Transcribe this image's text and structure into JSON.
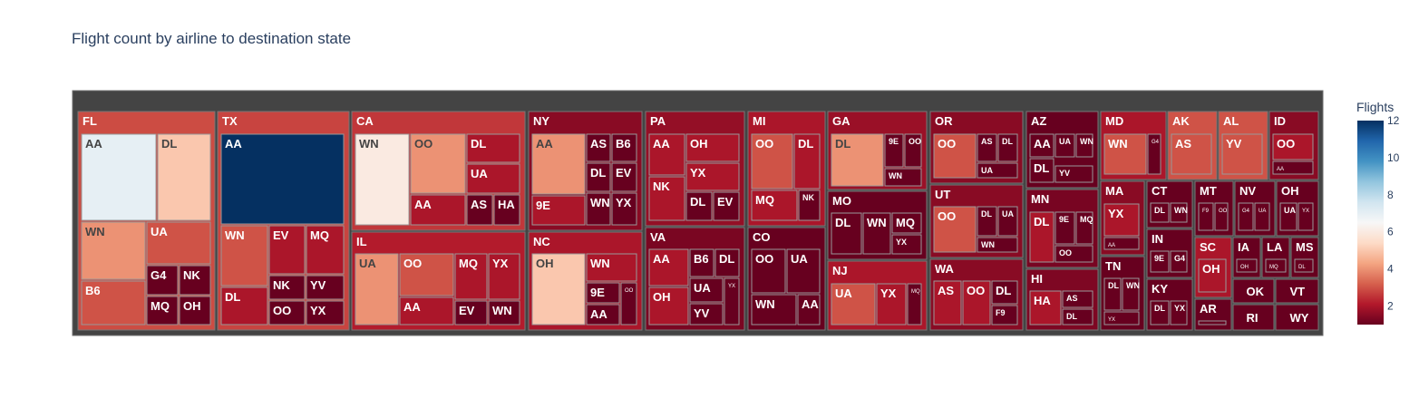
{
  "title": "Flight count by airline to destination state",
  "colorbar": {
    "title": "Flights",
    "ticks": [
      2,
      4,
      6,
      8,
      10,
      12
    ],
    "min": 1,
    "max": 12,
    "colorscale": [
      "#67001f",
      "#b2182b",
      "#d6604d",
      "#f4a582",
      "#fddbc7",
      "#f7f7f7",
      "#d1e5f0",
      "#92c5de",
      "#4393c3",
      "#2166ac",
      "#053061"
    ]
  },
  "chart_data": {
    "type": "treemap",
    "root_color_label": "all states",
    "states": [
      {
        "name": "FL",
        "airlines": [
          {
            "name": "AA",
            "flights": 7
          },
          {
            "name": "DL",
            "flights": 5
          },
          {
            "name": "WN",
            "flights": 4
          },
          {
            "name": "UA",
            "flights": 3
          },
          {
            "name": "B6",
            "flights": 3
          },
          {
            "name": "G4",
            "flights": 1
          },
          {
            "name": "NK",
            "flights": 1
          },
          {
            "name": "MQ",
            "flights": 1
          },
          {
            "name": "OH",
            "flights": 1
          }
        ]
      },
      {
        "name": "TX",
        "airlines": [
          {
            "name": "AA",
            "flights": 12
          },
          {
            "name": "WN",
            "flights": 3
          },
          {
            "name": "EV",
            "flights": 2
          },
          {
            "name": "MQ",
            "flights": 2
          },
          {
            "name": "DL",
            "flights": 2
          },
          {
            "name": "NK",
            "flights": 1
          },
          {
            "name": "YV",
            "flights": 1
          },
          {
            "name": "OO",
            "flights": 1
          },
          {
            "name": "YX",
            "flights": 1
          }
        ]
      },
      {
        "name": "CA",
        "airlines": [
          {
            "name": "WN",
            "flights": 6
          },
          {
            "name": "OO",
            "flights": 4
          },
          {
            "name": "DL",
            "flights": 2
          },
          {
            "name": "UA",
            "flights": 2
          },
          {
            "name": "AA",
            "flights": 2
          },
          {
            "name": "AS",
            "flights": 1
          },
          {
            "name": "HA",
            "flights": 1
          }
        ]
      },
      {
        "name": "IL",
        "airlines": [
          {
            "name": "UA",
            "flights": 4
          },
          {
            "name": "OO",
            "flights": 3
          },
          {
            "name": "MQ",
            "flights": 2
          },
          {
            "name": "YX",
            "flights": 2
          },
          {
            "name": "AA",
            "flights": 2
          },
          {
            "name": "EV",
            "flights": 1
          },
          {
            "name": "WN",
            "flights": 1
          }
        ]
      },
      {
        "name": "NY",
        "airlines": [
          {
            "name": "AA",
            "flights": 4
          },
          {
            "name": "AS",
            "flights": 1
          },
          {
            "name": "B6",
            "flights": 1
          },
          {
            "name": "DL",
            "flights": 1
          },
          {
            "name": "EV",
            "flights": 1
          },
          {
            "name": "9E",
            "flights": 2
          },
          {
            "name": "WN",
            "flights": 1
          },
          {
            "name": "YX",
            "flights": 1
          }
        ]
      },
      {
        "name": "NC",
        "airlines": [
          {
            "name": "OH",
            "flights": 5
          },
          {
            "name": "WN",
            "flights": 2
          },
          {
            "name": "9E",
            "flights": 1
          },
          {
            "name": "AA",
            "flights": 1
          },
          {
            "name": "OO",
            "flights": 1
          }
        ]
      },
      {
        "name": "PA",
        "airlines": [
          {
            "name": "AA",
            "flights": 2
          },
          {
            "name": "OH",
            "flights": 2
          },
          {
            "name": "YX",
            "flights": 2
          },
          {
            "name": "NK",
            "flights": 2
          },
          {
            "name": "DL",
            "flights": 1
          },
          {
            "name": "EV",
            "flights": 1
          }
        ]
      },
      {
        "name": "VA",
        "airlines": [
          {
            "name": "AA",
            "flights": 2
          },
          {
            "name": "B6",
            "flights": 1
          },
          {
            "name": "DL",
            "flights": 1
          },
          {
            "name": "OH",
            "flights": 2
          },
          {
            "name": "UA",
            "flights": 1
          },
          {
            "name": "YV",
            "flights": 1
          },
          {
            "name": "YX",
            "flights": 1
          }
        ]
      },
      {
        "name": "MI",
        "airlines": [
          {
            "name": "OO",
            "flights": 3
          },
          {
            "name": "DL",
            "flights": 2
          },
          {
            "name": "MQ",
            "flights": 2
          },
          {
            "name": "NK",
            "flights": 1
          }
        ]
      },
      {
        "name": "CO",
        "airlines": [
          {
            "name": "OO",
            "flights": 1
          },
          {
            "name": "UA",
            "flights": 1
          },
          {
            "name": "WN",
            "flights": 1
          },
          {
            "name": "AA",
            "flights": 1
          }
        ]
      },
      {
        "name": "GA",
        "airlines": [
          {
            "name": "DL",
            "flights": 4
          },
          {
            "name": "9E",
            "flights": 1
          },
          {
            "name": "OO",
            "flights": 1
          },
          {
            "name": "WN",
            "flights": 1
          }
        ]
      },
      {
        "name": "MO",
        "airlines": [
          {
            "name": "DL",
            "flights": 1
          },
          {
            "name": "WN",
            "flights": 1
          },
          {
            "name": "MQ",
            "flights": 1
          },
          {
            "name": "YX",
            "flights": 1
          }
        ]
      },
      {
        "name": "NJ",
        "airlines": [
          {
            "name": "UA",
            "flights": 3
          },
          {
            "name": "YX",
            "flights": 2
          },
          {
            "name": "MQ",
            "flights": 1
          }
        ]
      },
      {
        "name": "OR",
        "airlines": [
          {
            "name": "OO",
            "flights": 3
          },
          {
            "name": "AS",
            "flights": 1
          },
          {
            "name": "DL",
            "flights": 1
          },
          {
            "name": "UA",
            "flights": 1
          }
        ]
      },
      {
        "name": "UT",
        "airlines": [
          {
            "name": "OO",
            "flights": 3
          },
          {
            "name": "DL",
            "flights": 1
          },
          {
            "name": "UA",
            "flights": 1
          },
          {
            "name": "WN",
            "flights": 1
          }
        ]
      },
      {
        "name": "WA",
        "airlines": [
          {
            "name": "AS",
            "flights": 2
          },
          {
            "name": "OO",
            "flights": 2
          },
          {
            "name": "DL",
            "flights": 1
          },
          {
            "name": "F9",
            "flights": 1
          }
        ]
      },
      {
        "name": "AZ",
        "airlines": [
          {
            "name": "AA",
            "flights": 1
          },
          {
            "name": "UA",
            "flights": 1
          },
          {
            "name": "WN",
            "flights": 1
          },
          {
            "name": "DL",
            "flights": 1
          },
          {
            "name": "YV",
            "flights": 1
          }
        ]
      },
      {
        "name": "MN",
        "airlines": [
          {
            "name": "DL",
            "flights": 2
          },
          {
            "name": "9E",
            "flights": 1
          },
          {
            "name": "MQ",
            "flights": 1
          },
          {
            "name": "OO",
            "flights": 1
          }
        ]
      },
      {
        "name": "HI",
        "airlines": [
          {
            "name": "HA",
            "flights": 2
          },
          {
            "name": "AS",
            "flights": 1
          },
          {
            "name": "DL",
            "flights": 1
          }
        ]
      },
      {
        "name": "MD",
        "airlines": [
          {
            "name": "WN",
            "flights": 3
          },
          {
            "name": "G4",
            "flights": 1
          }
        ]
      },
      {
        "name": "AK",
        "airlines": [
          {
            "name": "AS",
            "flights": 3
          }
        ]
      },
      {
        "name": "AL",
        "airlines": [
          {
            "name": "YV",
            "flights": 3
          }
        ]
      },
      {
        "name": "ID",
        "airlines": [
          {
            "name": "OO",
            "flights": 2
          },
          {
            "name": "AA",
            "flights": 1
          }
        ]
      },
      {
        "name": "MA",
        "airlines": [
          {
            "name": "YX",
            "flights": 2
          },
          {
            "name": "AA",
            "flights": 1
          }
        ]
      },
      {
        "name": "TN",
        "airlines": [
          {
            "name": "DL",
            "flights": 1
          },
          {
            "name": "WN",
            "flights": 1
          },
          {
            "name": "YX",
            "flights": 1
          }
        ]
      },
      {
        "name": "CT",
        "airlines": [
          {
            "name": "DL",
            "flights": 1
          },
          {
            "name": "WN",
            "flights": 1
          }
        ]
      },
      {
        "name": "IN",
        "airlines": [
          {
            "name": "9E",
            "flights": 1
          },
          {
            "name": "G4",
            "flights": 1
          }
        ]
      },
      {
        "name": "KY",
        "airlines": [
          {
            "name": "DL",
            "flights": 1
          },
          {
            "name": "YX",
            "flights": 1
          }
        ]
      },
      {
        "name": "MT",
        "airlines": [
          {
            "name": "F9",
            "flights": 1
          },
          {
            "name": "OO",
            "flights": 1
          }
        ]
      },
      {
        "name": "NV",
        "airlines": [
          {
            "name": "G4",
            "flights": 1
          },
          {
            "name": "UA",
            "flights": 1
          }
        ]
      },
      {
        "name": "OH",
        "airlines": [
          {
            "name": "UA",
            "flights": 1
          },
          {
            "name": "YX",
            "flights": 1
          }
        ]
      },
      {
        "name": "SC",
        "airlines": [
          {
            "name": "OH",
            "flights": 2
          }
        ]
      },
      {
        "name": "AR",
        "airlines": [
          {
            "name": "",
            "flights": 1
          }
        ]
      },
      {
        "name": "IA",
        "airlines": [
          {
            "name": "OH",
            "flights": 1
          }
        ]
      },
      {
        "name": "LA",
        "airlines": [
          {
            "name": "MQ",
            "flights": 1
          }
        ]
      },
      {
        "name": "MS",
        "airlines": [
          {
            "name": "DL",
            "flights": 1
          }
        ]
      },
      {
        "name": "OK",
        "airlines": []
      },
      {
        "name": "VT",
        "airlines": []
      },
      {
        "name": "RI",
        "airlines": []
      },
      {
        "name": "WY",
        "airlines": []
      }
    ]
  }
}
